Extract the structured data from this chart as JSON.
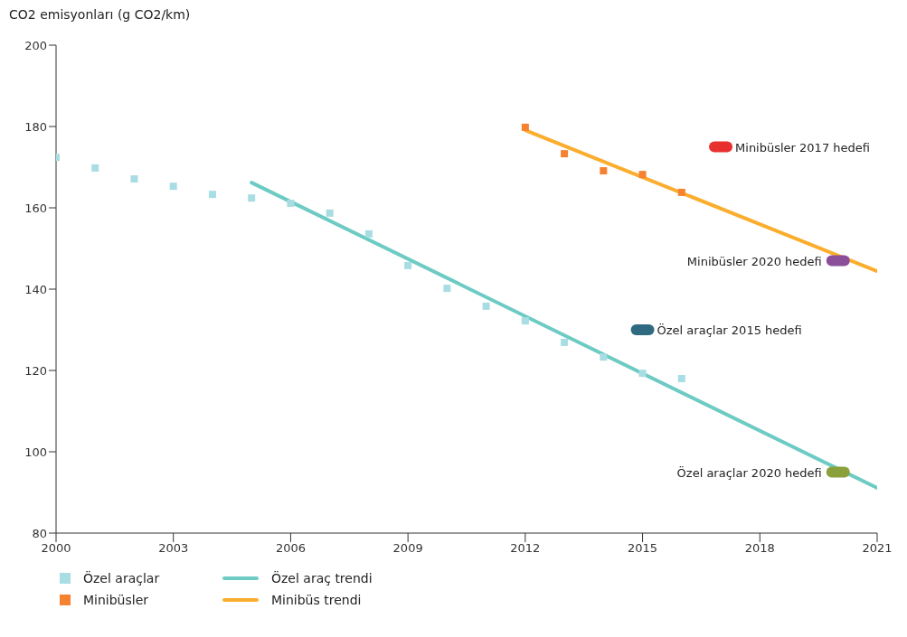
{
  "chart_data": {
    "type": "scatter",
    "ylabel": "CO2 emisyonları (g CO2/km)",
    "xlim": [
      2000,
      2021
    ],
    "xticks": [
      2000,
      2003,
      2006,
      2009,
      2012,
      2015,
      2018,
      2021
    ],
    "ylim": [
      80,
      200
    ],
    "yticks": [
      80,
      100,
      120,
      140,
      160,
      180,
      200
    ],
    "grid": false,
    "legend": "bottom",
    "series": [
      {
        "name": "Özel araçlar",
        "marker": "square",
        "color": "#a8dde3",
        "x": [
          2000,
          2001,
          2002,
          2003,
          2004,
          2005,
          2006,
          2007,
          2008,
          2009,
          2010,
          2011,
          2012,
          2013,
          2014,
          2015,
          2016
        ],
        "values": [
          172.4,
          169.8,
          167.1,
          165.3,
          163.3,
          162.4,
          161.1,
          158.7,
          153.6,
          145.8,
          140.2,
          135.8,
          132.2,
          126.9,
          123.3,
          119.3,
          118.0
        ]
      },
      {
        "name": "Minibüsler",
        "marker": "square",
        "color": "#f58230",
        "x": [
          2012,
          2013,
          2014,
          2015,
          2016
        ],
        "values": [
          179.8,
          173.3,
          169.1,
          168.2,
          163.8
        ]
      },
      {
        "name": "Özel araç trendi",
        "type": "line",
        "color": "#6dcbc4",
        "x": [
          2005,
          2021
        ],
        "values": [
          166.2,
          91.1
        ]
      },
      {
        "name": "Minibüs trendi",
        "type": "line",
        "color": "#fbad2e",
        "x": [
          2012,
          2021
        ],
        "values": [
          179.1,
          144.4
        ]
      },
      {
        "name": "Minibüsler 2017 hedefi",
        "color": "#e8312f",
        "x": [
          2017
        ],
        "values": [
          175
        ]
      },
      {
        "name": "Minibüsler 2020 hedefi",
        "color": "#8b4f9a",
        "x": [
          2020
        ],
        "values": [
          147
        ]
      },
      {
        "name": "Özel araçlar 2015 hedefi",
        "color": "#2e6a80",
        "x": [
          2015
        ],
        "values": [
          130
        ]
      },
      {
        "name": "Özel araçlar 2020 hedefi",
        "color": "#8aa03a",
        "x": [
          2020
        ],
        "values": [
          95
        ]
      }
    ]
  }
}
